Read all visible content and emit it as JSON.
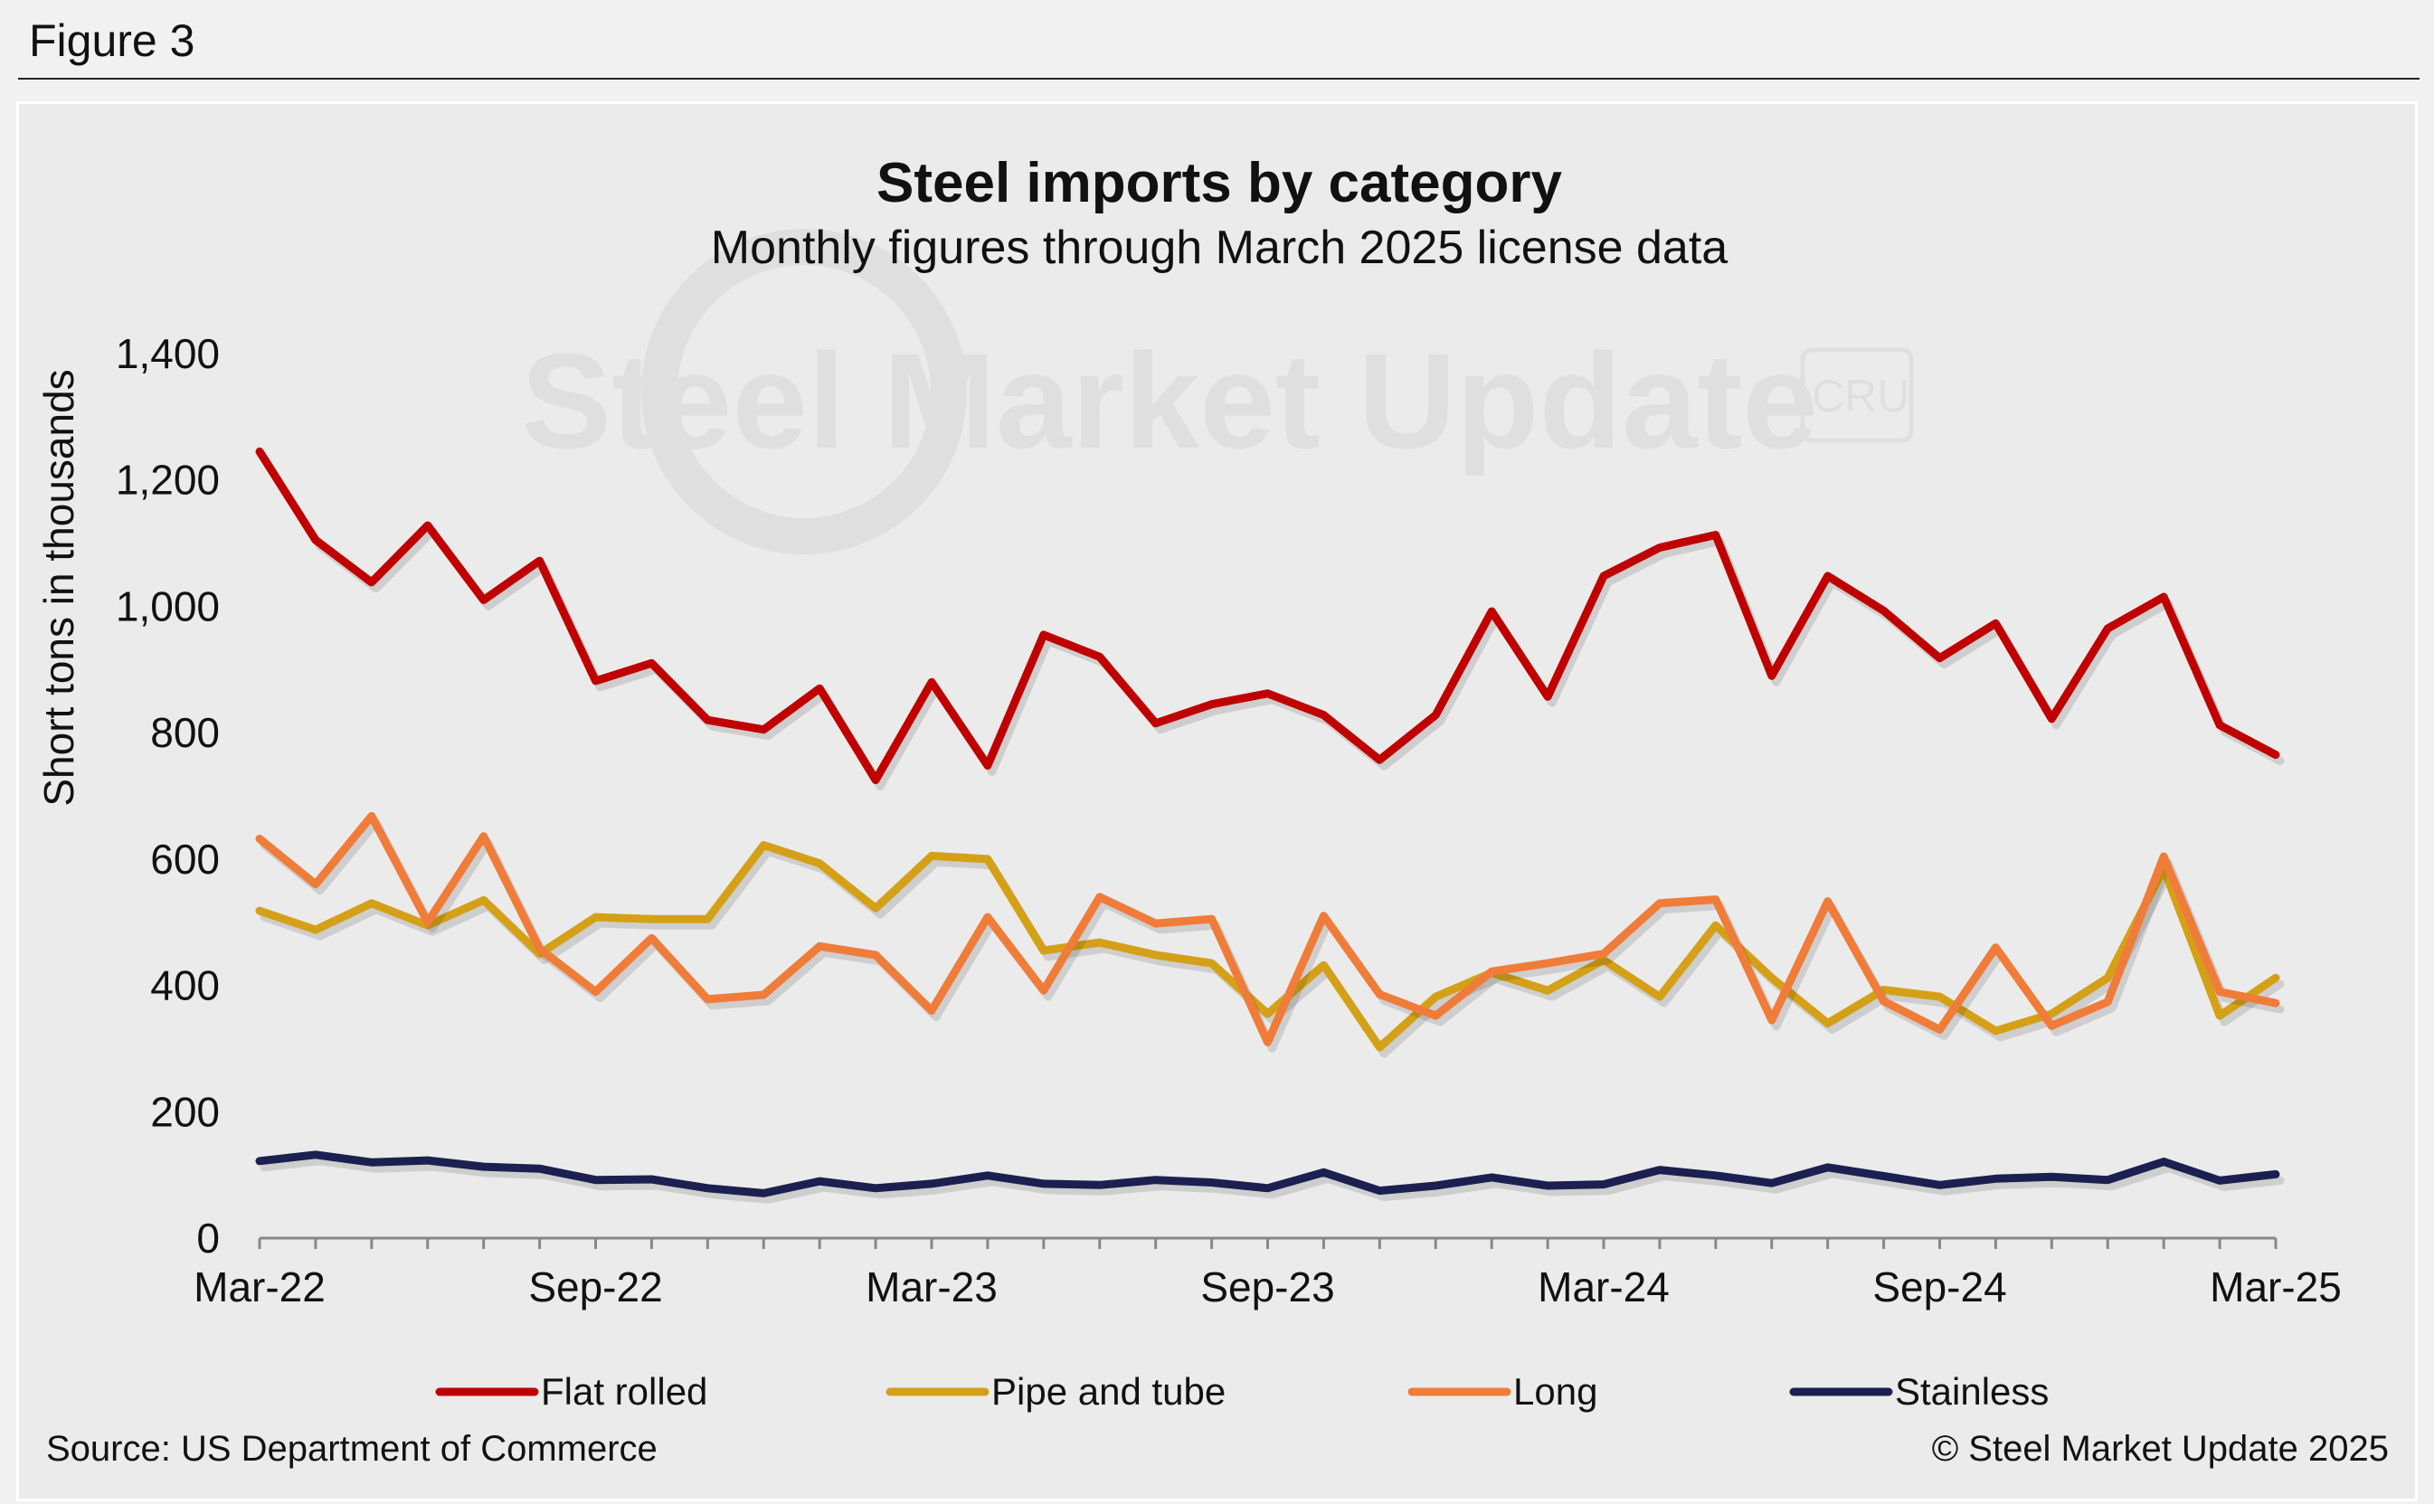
{
  "figure_label": "Figure 3",
  "source": "Source: US Department of Commerce",
  "copyright": "© Steel Market Update 2025",
  "watermark": "Steel Market Update",
  "watermark_badge": "CRU",
  "chart_data": {
    "type": "line",
    "title": "Steel imports by category",
    "subtitle": "Monthly figures through March 2025 license data",
    "xlabel": "",
    "ylabel": "Short tons in thousands",
    "ylim": [
      0,
      1400
    ],
    "yticks": [
      0,
      200,
      400,
      600,
      800,
      1000,
      1200,
      1400
    ],
    "ytick_labels": [
      "0",
      "200",
      "400",
      "600",
      "800",
      "1,000",
      "1,200",
      "1,400"
    ],
    "x": [
      "Mar-22",
      "Apr-22",
      "May-22",
      "Jun-22",
      "Jul-22",
      "Aug-22",
      "Sep-22",
      "Oct-22",
      "Nov-22",
      "Dec-22",
      "Jan-23",
      "Feb-23",
      "Mar-23",
      "Apr-23",
      "May-23",
      "Jun-23",
      "Jul-23",
      "Aug-23",
      "Sep-23",
      "Oct-23",
      "Nov-23",
      "Dec-23",
      "Jan-24",
      "Feb-24",
      "Mar-24",
      "Apr-24",
      "May-24",
      "Jun-24",
      "Jul-24",
      "Aug-24",
      "Sep-24",
      "Oct-24",
      "Nov-24",
      "Dec-24",
      "Jan-25",
      "Feb-25",
      "Mar-25"
    ],
    "xtick_labels": [
      "Mar-22",
      "Sep-22",
      "Mar-23",
      "Sep-23",
      "Mar-24",
      "Sep-24",
      "Mar-25"
    ],
    "xtick_indices": [
      0,
      6,
      12,
      18,
      24,
      30,
      36
    ],
    "legend_position": "bottom",
    "grid": false,
    "series": [
      {
        "name": "Flat rolled",
        "color": "#c00000",
        "values": [
          1245,
          1105,
          1038,
          1128,
          1010,
          1072,
          882,
          910,
          820,
          805,
          870,
          725,
          880,
          748,
          955,
          920,
          815,
          845,
          862,
          828,
          757,
          828,
          992,
          857,
          1048,
          1093,
          1113,
          890,
          1048,
          993,
          918,
          973,
          822,
          965,
          1015,
          812,
          765
        ]
      },
      {
        "name": "Pipe and tube",
        "color": "#d4a017",
        "values": [
          518,
          488,
          530,
          495,
          535,
          450,
          508,
          505,
          505,
          622,
          593,
          522,
          605,
          600,
          455,
          468,
          448,
          435,
          355,
          432,
          302,
          382,
          420,
          392,
          440,
          382,
          495,
          412,
          340,
          393,
          382,
          328,
          355,
          412,
          585,
          352,
          412
        ]
      },
      {
        "name": "Long",
        "color": "#f07c3a",
        "values": [
          632,
          560,
          668,
          500,
          636,
          458,
          390,
          475,
          378,
          385,
          462,
          448,
          360,
          508,
          392,
          540,
          498,
          505,
          310,
          510,
          386,
          352,
          422,
          435,
          450,
          530,
          536,
          345,
          533,
          375,
          330,
          460,
          336,
          374,
          604,
          390,
          372
        ]
      },
      {
        "name": "Stainless",
        "color": "#1b2050",
        "values": [
          122,
          132,
          120,
          123,
          113,
          110,
          92,
          93,
          79,
          71,
          90,
          79,
          86,
          99,
          86,
          84,
          92,
          88,
          79,
          104,
          75,
          83,
          96,
          83,
          85,
          108,
          99,
          87,
          112,
          98,
          84,
          94,
          97,
          92,
          121,
          91,
          101
        ]
      }
    ]
  }
}
